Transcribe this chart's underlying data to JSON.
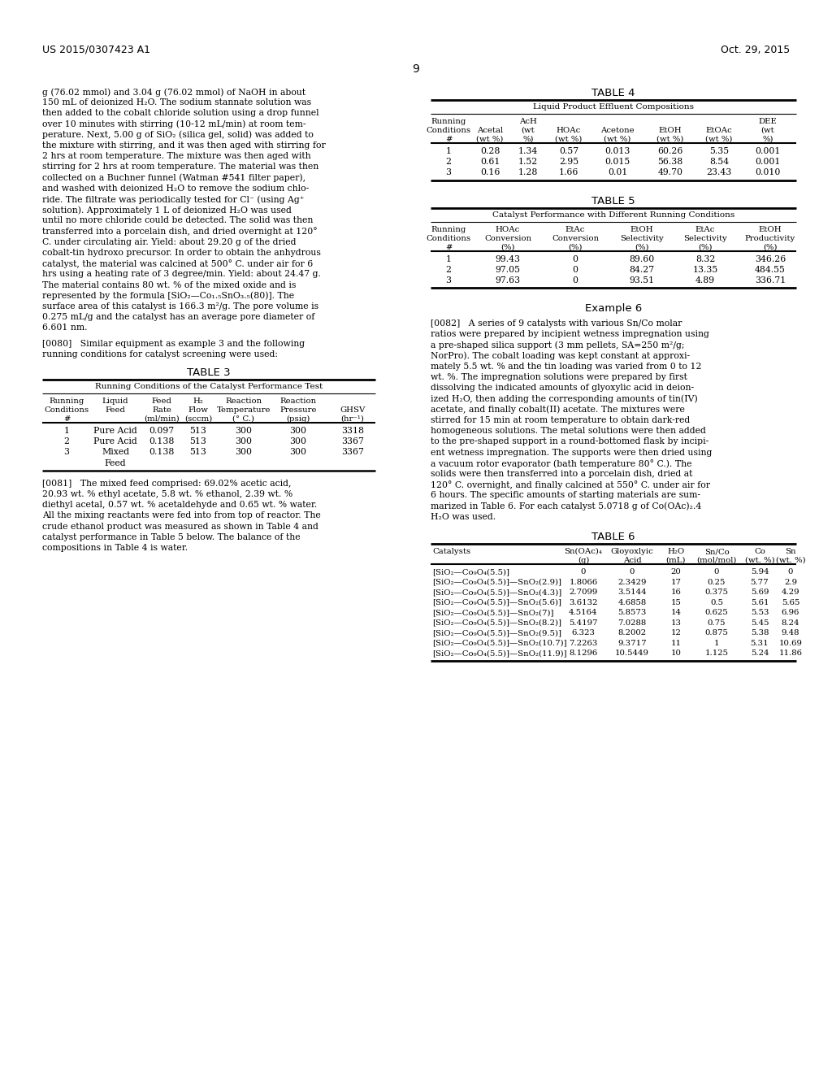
{
  "header_left": "US 2015/0307423 A1",
  "header_right": "Oct. 29, 2015",
  "page_number": "9",
  "background_color": "#ffffff",
  "text_color": "#000000",
  "left_column_text": [
    "g (76.02 mmol) and 3.04 g (76.02 mmol) of NaOH in about",
    "150 mL of deionized H₂O. The sodium stannate solution was",
    "then added to the cobalt chloride solution using a drop funnel",
    "over 10 minutes with stirring (10-12 mL/min) at room tem-",
    "perature. Next, 5.00 g of SiO₂ (silica gel, solid) was added to",
    "the mixture with stirring, and it was then aged with stirring for",
    "2 hrs at room temperature. The mixture was then aged with",
    "stirring for 2 hrs at room temperature. The material was then",
    "collected on a Buchner funnel (Watman #541 filter paper),",
    "and washed with deionized H₂O to remove the sodium chlo-",
    "ride. The filtrate was periodically tested for Cl⁻ (using Ag⁺",
    "solution). Approximately 1 L of deionized H₂O was used",
    "until no more chloride could be detected. The solid was then",
    "transferred into a porcelain dish, and dried overnight at 120°",
    "C. under circulating air. Yield: about 29.20 g of the dried",
    "cobalt-tin hydroxo precursor. In order to obtain the anhydrous",
    "catalyst, the material was calcined at 500° C. under air for 6",
    "hrs using a heating rate of 3 degree/min. Yield: about 24.47 g.",
    "The material contains 80 wt. % of the mixed oxide and is",
    "represented by the formula [SiO₂—Co₁.₅SnO₃.₅(80)]. The",
    "surface area of this catalyst is 166.3 m²/g. The pore volume is",
    "0.275 mL/g and the catalyst has an average pore diameter of",
    "6.601 nm."
  ],
  "para_0080_line1": "[0080]   Similar equipment as example 3 and the following",
  "para_0080_line2": "running conditions for catalyst screening were used:",
  "table3_title": "TABLE 3",
  "table3_subtitle": "Running Conditions of the Catalyst Performance Test",
  "table3_col_headers": [
    [
      "Running",
      "Liquid",
      "Feed",
      "H₂",
      "Reaction",
      "Reaction",
      ""
    ],
    [
      "Conditions",
      "Feed",
      "Rate",
      "Flow",
      "Temperature",
      "Pressure",
      "GHSV"
    ],
    [
      "#",
      "",
      "(ml/min)",
      "(sccm)",
      "(° C.)",
      "(psig)",
      "(hr⁻¹)"
    ]
  ],
  "table3_data": [
    [
      "1",
      "Pure Acid",
      "0.097",
      "513",
      "300",
      "300",
      "3318"
    ],
    [
      "2",
      "Pure Acid",
      "0.138",
      "513",
      "300",
      "300",
      "3367"
    ],
    [
      "3",
      "Mixed\nFeed",
      "0.138",
      "513",
      "300",
      "300",
      "3367"
    ]
  ],
  "para_0081_lines": [
    "[0081]   The mixed feed comprised: 69.02% acetic acid,",
    "20.93 wt. % ethyl acetate, 5.8 wt. % ethanol, 2.39 wt. %",
    "diethyl acetal, 0.57 wt. % acetaldehyde and 0.65 wt. % water.",
    "All the mixing reactants were fed into from top of reactor. The",
    "crude ethanol product was measured as shown in Table 4 and",
    "catalyst performance in Table 5 below. The balance of the",
    "compositions in Table 4 is water."
  ],
  "table4_title": "TABLE 4",
  "table4_subtitle": "Liquid Product Effluent Compositions",
  "table4_col_headers": [
    [
      "Running",
      "",
      "AcH",
      "",
      "",
      "",
      "",
      "DEE"
    ],
    [
      "Conditions",
      "Acetal",
      "(wt",
      "HOAc",
      "Acetone",
      "EtOH",
      "EtOAc",
      "(wt"
    ],
    [
      "#",
      "(wt %)",
      "%)",
      "(wt %)",
      "(wt %)",
      "(wt %)",
      "(wt %)",
      "%)"
    ]
  ],
  "table4_data": [
    [
      "1",
      "0.28",
      "1.34",
      "0.57",
      "0.013",
      "60.26",
      "5.35",
      "0.001"
    ],
    [
      "2",
      "0.61",
      "1.52",
      "2.95",
      "0.015",
      "56.38",
      "8.54",
      "0.001"
    ],
    [
      "3",
      "0.16",
      "1.28",
      "1.66",
      "0.01",
      "49.70",
      "23.43",
      "0.010"
    ]
  ],
  "table5_title": "TABLE 5",
  "table5_subtitle": "Catalyst Performance with Different Running Conditions",
  "table5_col_headers": [
    [
      "Running",
      "HOAc",
      "EtAc",
      "EtOH",
      "EtAc",
      "EtOH"
    ],
    [
      "Conditions",
      "Conversion",
      "Conversion",
      "Selectivity",
      "Selectivity",
      "Productivity"
    ],
    [
      "#",
      "(%)",
      "(%)",
      "(%)",
      "(%)",
      "(%)"
    ]
  ],
  "table5_data": [
    [
      "1",
      "99.43",
      "0",
      "89.60",
      "8.32",
      "346.26"
    ],
    [
      "2",
      "97.05",
      "0",
      "84.27",
      "13.35",
      "484.55"
    ],
    [
      "3",
      "97.63",
      "0",
      "93.51",
      "4.89",
      "336.71"
    ]
  ],
  "example6_header": "Example 6",
  "para_0082_lines": [
    "[0082]   A series of 9 catalysts with various Sn/Co molar",
    "ratios were prepared by incipient wetness impregnation using",
    "a pre-shaped silica support (3 mm pellets, SA=250 m²/g;",
    "NorPro). The cobalt loading was kept constant at approxi-",
    "mately 5.5 wt. % and the tin loading was varied from 0 to 12",
    "wt. %. The impregnation solutions were prepared by first",
    "dissolving the indicated amounts of glyoxylic acid in deion-",
    "ized H₂O, then adding the corresponding amounts of tin(IV)",
    "acetate, and finally cobalt(II) acetate. The mixtures were",
    "stirred for 15 min at room temperature to obtain dark-red",
    "homogeneous solutions. The metal solutions were then added",
    "to the pre-shaped support in a round-bottomed flask by incipi-",
    "ent wetness impregnation. The supports were then dried using",
    "a vacuum rotor evaporator (bath temperature 80° C.). The",
    "solids were then transferred into a porcelain dish, dried at",
    "120° C. overnight, and finally calcined at 550° C. under air for",
    "6 hours. The specific amounts of starting materials are sum-",
    "marized in Table 6. For each catalyst 5.0718 g of Co(OAc)₂.4",
    "H₂O was used."
  ],
  "table6_title": "TABLE 6",
  "table6_col_headers": [
    [
      "Catalysts",
      "Sn(OAc)₄",
      "Gloyoxlyic",
      "H₂O",
      "Sn/Co",
      "Co",
      "Sn"
    ],
    [
      "",
      "(g)",
      "Acid",
      "(mL)",
      "(mol/mol)",
      "(wt. %)",
      "(wt. %)"
    ]
  ],
  "table6_data": [
    [
      "[SiO₂—Co₉O₄(5.5)]",
      "0",
      "0",
      "20",
      "0",
      "5.94",
      "0"
    ],
    [
      "[SiO₂—Co₉O₄(5.5)]—SnO₂(2.9)]",
      "1.8066",
      "2.3429",
      "17",
      "0.25",
      "5.77",
      "2.9"
    ],
    [
      "[SiO₂—Co₉O₄(5.5)]—SnO₂(4.3)]",
      "2.7099",
      "3.5144",
      "16",
      "0.375",
      "5.69",
      "4.29"
    ],
    [
      "[SiO₂—Co₉O₄(5.5)]—SnO₂(5.6)]",
      "3.6132",
      "4.6858",
      "15",
      "0.5",
      "5.61",
      "5.65"
    ],
    [
      "[SiO₂—Co₉O₄(5.5)]—SnO₂(7)]",
      "4.5164",
      "5.8573",
      "14",
      "0.625",
      "5.53",
      "6.96"
    ],
    [
      "[SiO₂—Co₉O₄(5.5)]—SnO₂(8.2)]",
      "5.4197",
      "7.0288",
      "13",
      "0.75",
      "5.45",
      "8.24"
    ],
    [
      "[SiO₂—Co₉O₄(5.5)]—SnO₂(9.5)]",
      "6.323",
      "8.2002",
      "12",
      "0.875",
      "5.38",
      "9.48"
    ],
    [
      "[SiO₂—Co₉O₄(5.5)]—SnO₂(10.7)]",
      "7.2263",
      "9.3717",
      "11",
      "1",
      "5.31",
      "10.69"
    ],
    [
      "[SiO₂—Co₉O₄(5.5)]—SnO₂(11.9)]",
      "8.1296",
      "10.5449",
      "10",
      "1.125",
      "5.24",
      "11.86"
    ]
  ]
}
